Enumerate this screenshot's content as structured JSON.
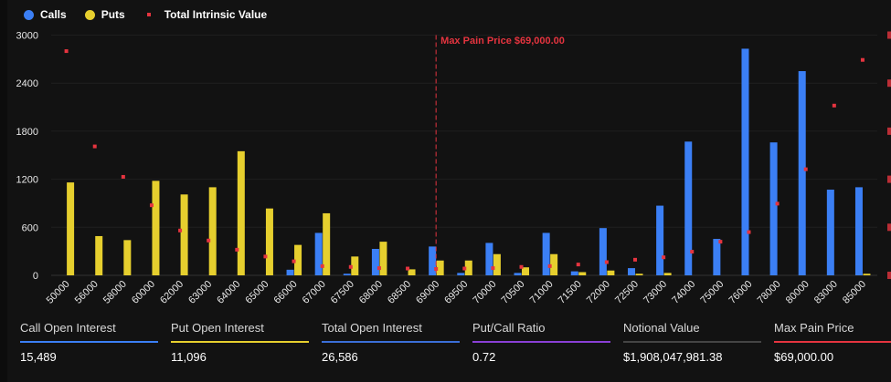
{
  "legend": {
    "calls": "Calls",
    "puts": "Puts",
    "intrinsic": "Total Intrinsic Value"
  },
  "colors": {
    "calls": "#3b7ff5",
    "puts": "#e6cf2e",
    "intrinsic": "#e5343f",
    "max_pain": "#e5343f",
    "background": "#121212"
  },
  "chart_data": {
    "type": "bar",
    "categories": [
      "50000",
      "56000",
      "58000",
      "60000",
      "62000",
      "63000",
      "64000",
      "65000",
      "66000",
      "67000",
      "67500",
      "68000",
      "68500",
      "69000",
      "69500",
      "70000",
      "70500",
      "71000",
      "71500",
      "72000",
      "72500",
      "73000",
      "74000",
      "75000",
      "76000",
      "78000",
      "80000",
      "83000",
      "85000"
    ],
    "series": [
      {
        "name": "Calls",
        "type": "bar",
        "values": [
          0,
          0,
          0,
          0,
          0,
          0,
          0,
          0,
          70,
          530,
          20,
          330,
          0,
          360,
          30,
          405,
          30,
          530,
          50,
          590,
          90,
          870,
          1670,
          455,
          2830,
          1660,
          2550,
          1070,
          1100
        ]
      },
      {
        "name": "Puts",
        "type": "bar",
        "values": [
          1160,
          490,
          440,
          1180,
          1010,
          1100,
          1550,
          835,
          380,
          775,
          235,
          420,
          75,
          185,
          185,
          265,
          100,
          265,
          40,
          60,
          20,
          30,
          0,
          0,
          0,
          0,
          0,
          0,
          20
        ]
      },
      {
        "name": "Total Intrinsic Value",
        "type": "scatter",
        "values": [
          2800,
          1610,
          1230,
          875,
          560,
          435,
          320,
          235,
          175,
          115,
          105,
          90,
          85,
          80,
          85,
          90,
          105,
          115,
          135,
          165,
          195,
          225,
          295,
          420,
          540,
          895,
          1325,
          2120,
          2690
        ]
      }
    ],
    "ylim": [
      0,
      3000
    ],
    "yticks": [
      "0",
      "600",
      "1200",
      "1800",
      "2400",
      "3000"
    ],
    "grid": true,
    "legend_position": "top-left",
    "annotation": {
      "category": "69000",
      "label": "Max Pain Price $69,000.00"
    }
  },
  "stats": [
    {
      "label": "Call Open Interest",
      "value": "15,489",
      "color": "#3b7ff5"
    },
    {
      "label": "Put Open Interest",
      "value": "11,096",
      "color": "#e6cf2e"
    },
    {
      "label": "Total Open Interest",
      "value": "26,586",
      "color": "#3b6fd8"
    },
    {
      "label": "Put/Call Ratio",
      "value": "0.72",
      "color": "#8a3fd6"
    },
    {
      "label": "Notional Value",
      "value": "$1,908,047,981.38",
      "color": "#444444"
    },
    {
      "label": "Max Pain Price",
      "value": "$69,000.00",
      "color": "#e5343f"
    }
  ]
}
